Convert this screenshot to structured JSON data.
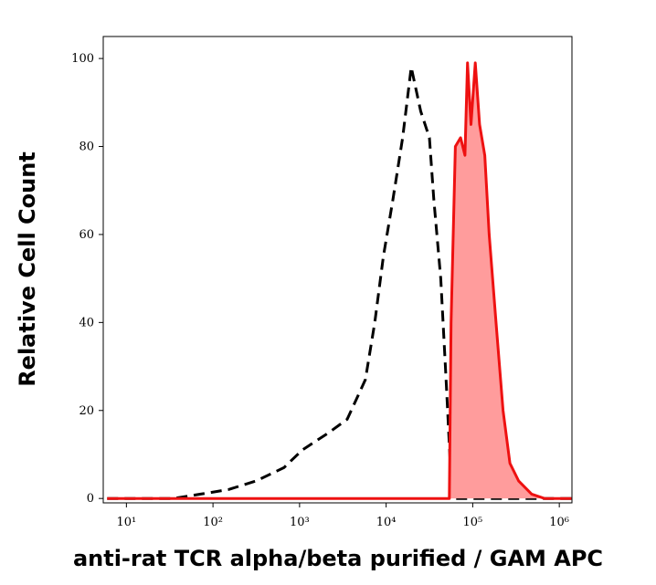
{
  "chart_data": {
    "type": "histogram-log",
    "xlabel": "anti-rat TCR alpha/beta purified / GAM APC",
    "ylabel": "Relative Cell Count",
    "x_log": true,
    "xlim": [
      5.4,
      1400000
    ],
    "ylim": [
      -1,
      105
    ],
    "xticks": [
      {
        "value": 10,
        "label": "10¹"
      },
      {
        "value": 100,
        "label": "10²"
      },
      {
        "value": 1000,
        "label": "10³"
      },
      {
        "value": 10000,
        "label": "10⁴"
      },
      {
        "value": 100000,
        "label": "10⁵"
      },
      {
        "value": 1000000,
        "label": "10⁶"
      }
    ],
    "yticks": [
      0,
      20,
      40,
      60,
      80,
      100
    ],
    "series": [
      {
        "color": "#000000",
        "dashed": true,
        "filled": false,
        "x": [
          6,
          35,
          72,
          150,
          316,
          660,
          1070,
          2190,
          3550,
          5750,
          7400,
          9300,
          12000,
          15500,
          19500,
          25100,
          31600,
          35500,
          42700,
          49000,
          55000,
          60300,
          1400000
        ],
        "values": [
          0,
          0,
          1,
          2,
          4,
          7,
          11,
          15,
          18,
          27,
          40,
          55,
          68,
          82,
          98,
          88,
          82,
          68,
          50,
          28,
          8,
          0,
          0
        ]
      },
      {
        "color": "#ee1111",
        "fill": "#ff9c9c",
        "dashed": false,
        "filled": true,
        "x": [
          6,
          53700,
          56200,
          63100,
          72400,
          81300,
          87100,
          95500,
          107000,
          120000,
          138000,
          155000,
          186000,
          224000,
          269000,
          339000,
          479000,
          676000,
          1380000
        ],
        "values": [
          0,
          0,
          40,
          80,
          82,
          78,
          99,
          85,
          99,
          85,
          78,
          60,
          40,
          20,
          8,
          4,
          1,
          0,
          0
        ]
      }
    ]
  }
}
